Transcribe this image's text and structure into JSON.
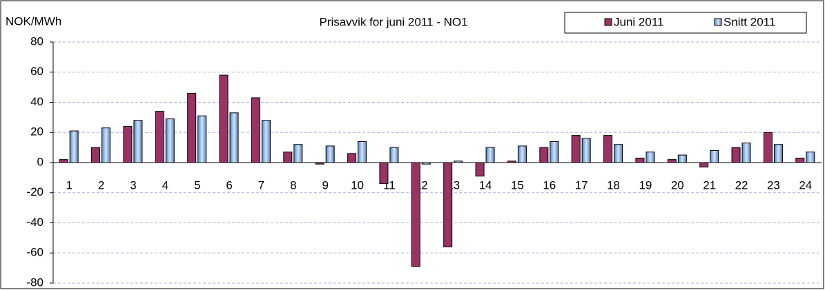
{
  "chart_data": {
    "type": "bar",
    "title": "Prisavvik for juni 2011 - NO1",
    "y_label": "NOK/MWh",
    "categories": [
      "1",
      "2",
      "3",
      "4",
      "5",
      "6",
      "7",
      "8",
      "9",
      "10",
      "11",
      "12",
      "13",
      "14",
      "15",
      "16",
      "17",
      "18",
      "19",
      "20",
      "21",
      "22",
      "23",
      "24"
    ],
    "series": [
      {
        "name": "Juni 2011",
        "color": "#993366",
        "values": [
          2,
          10,
          24,
          34,
          46,
          58,
          43,
          7,
          -1,
          6,
          -14,
          -69,
          -56,
          -9,
          1,
          10,
          18,
          18,
          3,
          2,
          -3,
          10,
          20,
          3
        ]
      },
      {
        "name": "Snitt 2011",
        "color": "#99ccff",
        "values": [
          21,
          23,
          28,
          29,
          31,
          33,
          28,
          12,
          11,
          14,
          10,
          -1,
          1,
          10,
          11,
          14,
          16,
          12,
          7,
          5,
          8,
          13,
          12,
          7
        ]
      }
    ],
    "ylim": [
      -80,
      80
    ],
    "yticks": [
      -80,
      -60,
      -40,
      -20,
      0,
      20,
      40,
      60,
      80
    ],
    "grid": true
  }
}
